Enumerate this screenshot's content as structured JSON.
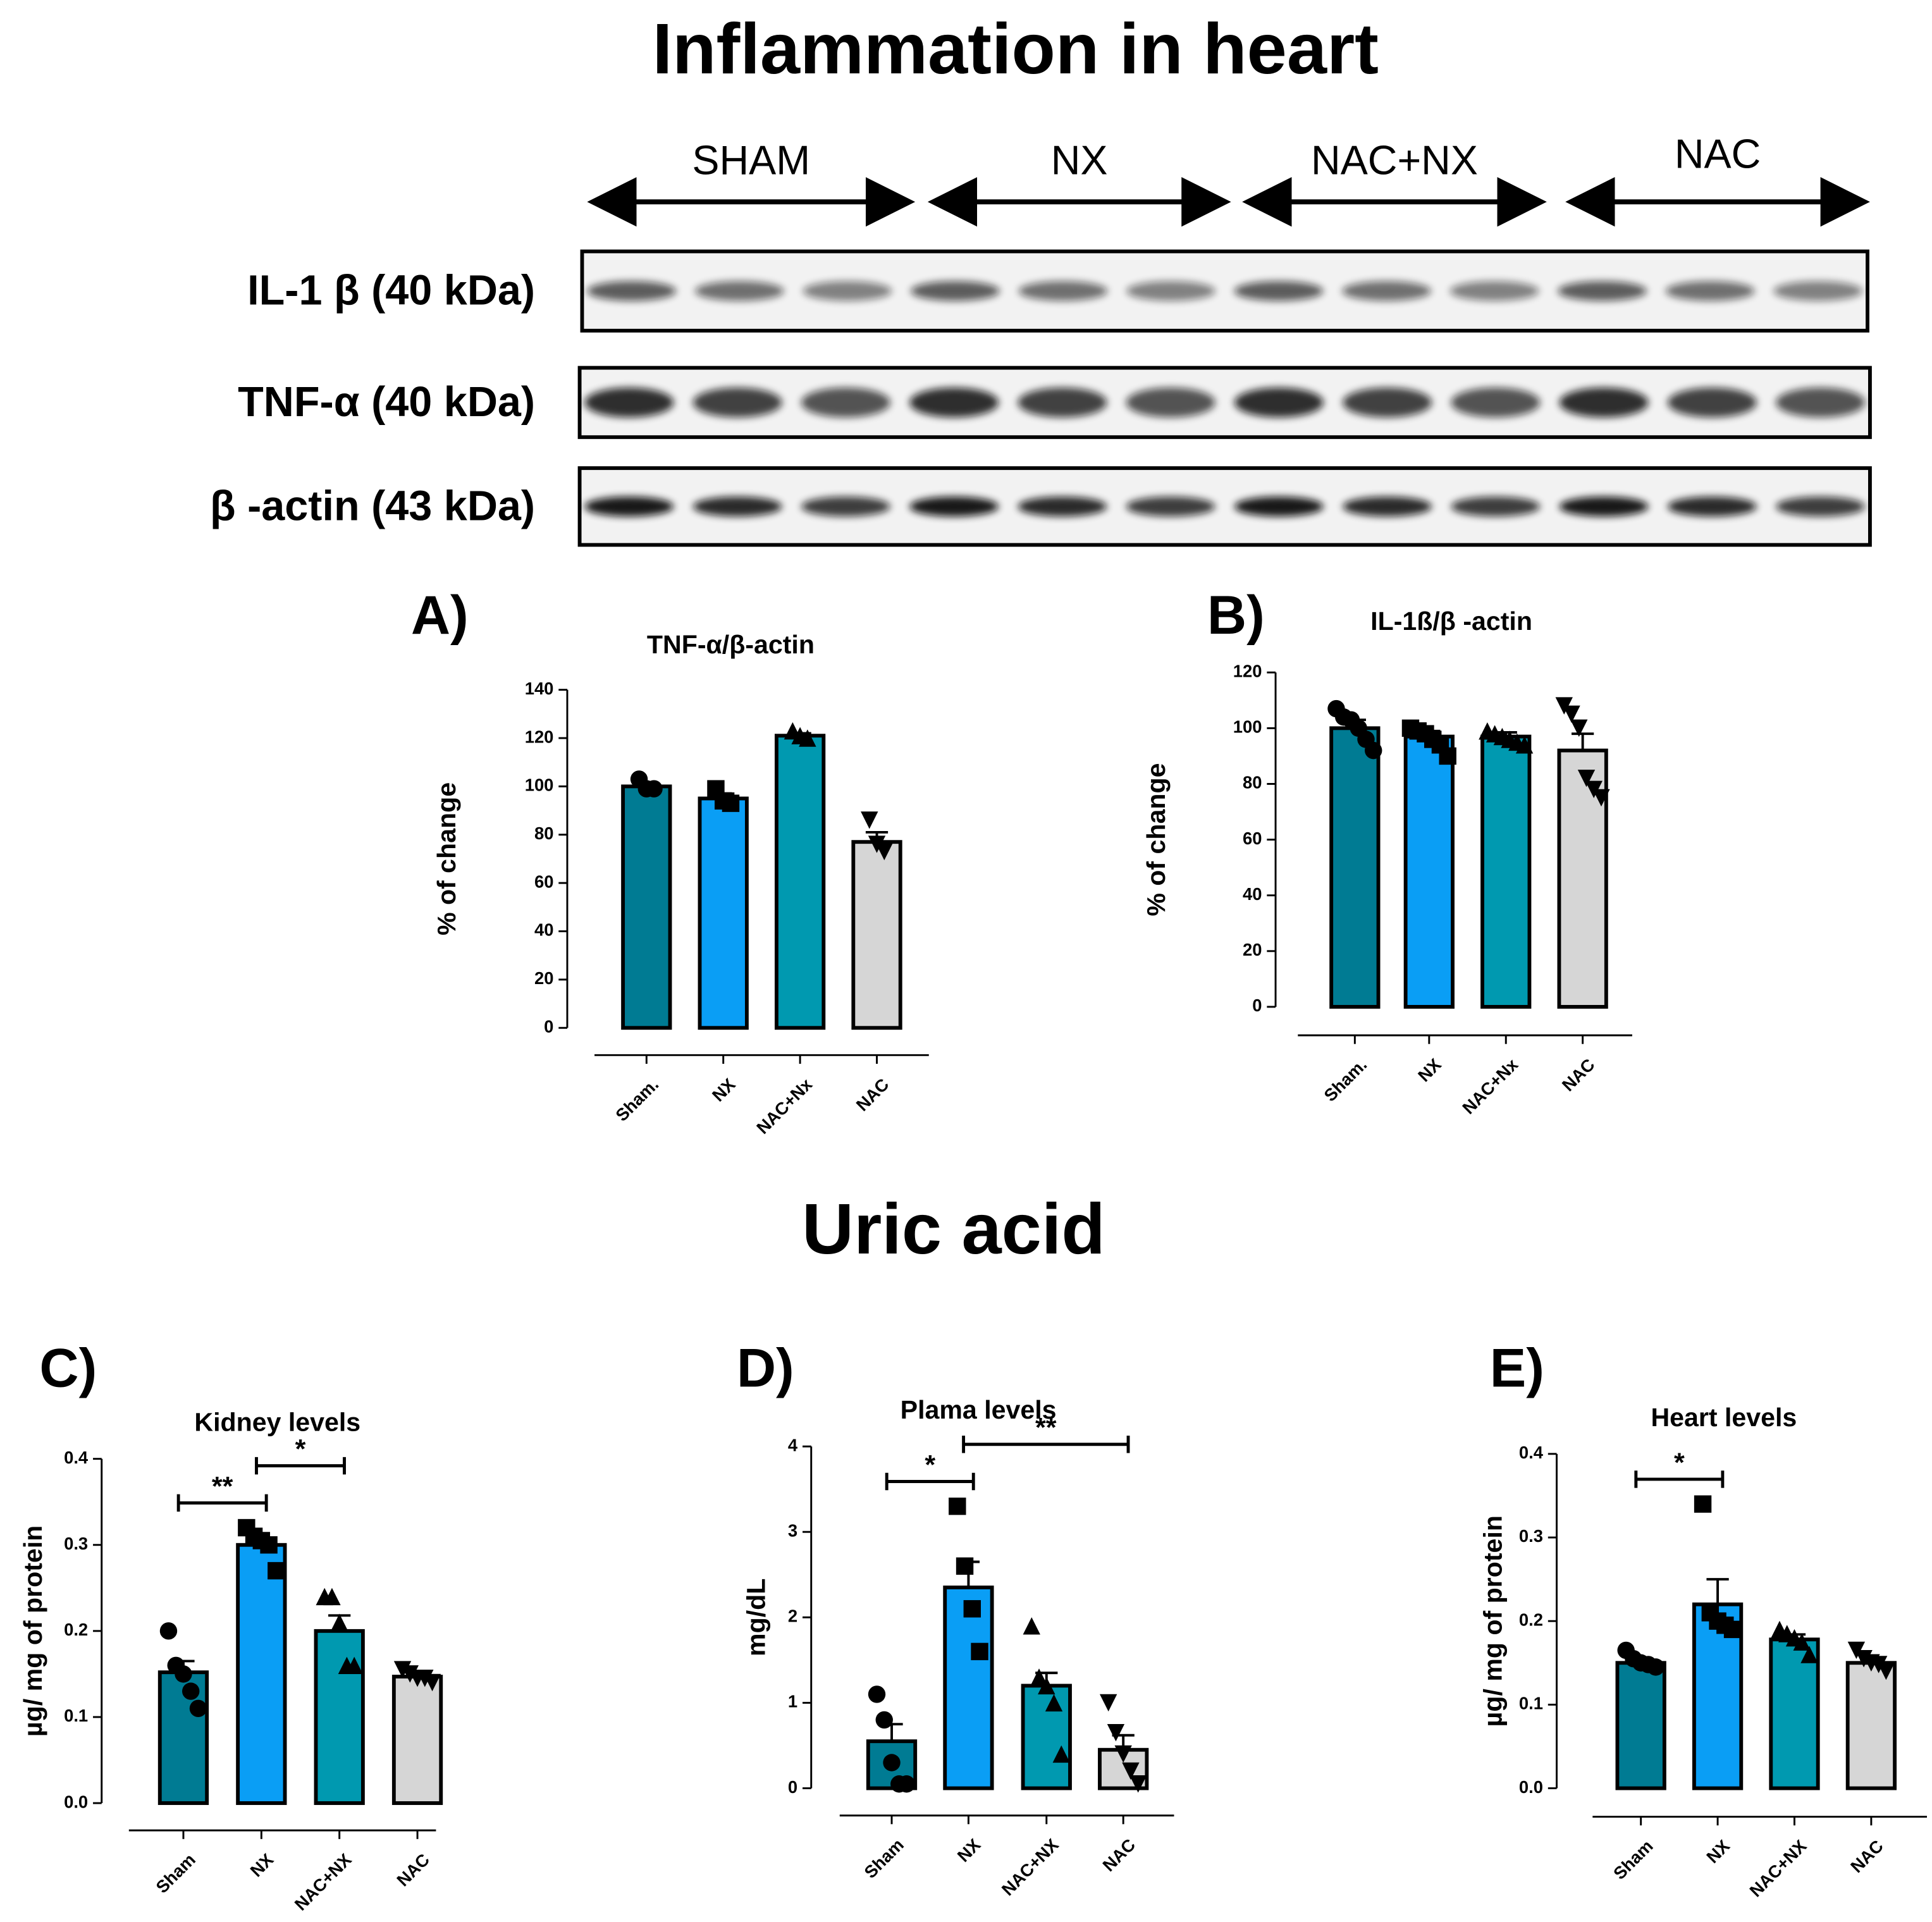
{
  "headings": {
    "inflammation": "Inflammation in heart",
    "uric": "Uric acid"
  },
  "blot": {
    "groups": [
      "SHAM",
      "NX",
      "NAC+NX",
      "NAC"
    ],
    "rows": [
      "IL-1 β (40 kDa)",
      "TNF-α (40 kDa)",
      "β -actin (43 kDa)"
    ]
  },
  "chart_data": [
    {
      "type": "bar",
      "panel": "A)",
      "title": "TNF-α/β-actin",
      "ylabel": "% of change",
      "categories": [
        "Sham.",
        "NX",
        "NAC+Nx",
        "NAC"
      ],
      "colors": [
        "#007b93",
        "#0a9ef5",
        "#0099b0",
        "#d6d6d6"
      ],
      "values": [
        100,
        95,
        121,
        77
      ],
      "errors": [
        1,
        2,
        1,
        4
      ],
      "points": [
        [
          103,
          99,
          99
        ],
        [
          99,
          94,
          93
        ],
        [
          123,
          121,
          120
        ],
        [
          86,
          76,
          73
        ]
      ],
      "markers": [
        "circle",
        "square",
        "triangle",
        "down-triangle"
      ],
      "ylim": [
        0,
        140
      ],
      "yticks": [
        0,
        20,
        40,
        60,
        80,
        100,
        120,
        140
      ],
      "annotations": []
    },
    {
      "type": "bar",
      "panel": "B)",
      "title": "IL-1ß/β -actin",
      "ylabel": "% of change",
      "categories": [
        "Sham.",
        "NX",
        "NAC+Nx",
        "NAC"
      ],
      "colors": [
        "#007b93",
        "#0a9ef5",
        "#0099b0",
        "#d6d6d6"
      ],
      "values": [
        100,
        97,
        97,
        92
      ],
      "errors": [
        3,
        2,
        1.5,
        6
      ],
      "points": [
        [
          107,
          104,
          103,
          100,
          96,
          92
        ],
        [
          100,
          99,
          98,
          96,
          94,
          90
        ],
        [
          99,
          98,
          97,
          96,
          95,
          94
        ],
        [
          108,
          105,
          100,
          82,
          78,
          75
        ]
      ],
      "markers": [
        "circle",
        "square",
        "triangle",
        "down-triangle"
      ],
      "ylim": [
        0,
        120
      ],
      "yticks": [
        0,
        20,
        40,
        60,
        80,
        100,
        120
      ],
      "annotations": []
    },
    {
      "type": "bar",
      "panel": "C)",
      "title": "Kidney levels",
      "ylabel": "µg/ mg of protein",
      "categories": [
        "Sham",
        "NX",
        "NAC+NX",
        "NAC"
      ],
      "colors": [
        "#007b93",
        "#0a9ef5",
        "#0099b0",
        "#d6d6d6"
      ],
      "values": [
        0.152,
        0.3,
        0.2,
        0.147
      ],
      "errors": [
        0.013,
        0.007,
        0.018,
        0.003
      ],
      "points": [
        [
          0.2,
          0.16,
          0.15,
          0.13,
          0.11
        ],
        [
          0.32,
          0.31,
          0.305,
          0.3,
          0.27
        ],
        [
          0.24,
          0.24,
          0.21,
          0.16,
          0.16
        ],
        [
          0.155,
          0.15,
          0.145,
          0.145,
          0.14
        ]
      ],
      "markers": [
        "circle",
        "square",
        "triangle",
        "down-triangle"
      ],
      "ylim": [
        0,
        0.4
      ],
      "yticks": [
        {
          "value": 0,
          "label": "0.0"
        },
        0.1,
        0.2,
        0.3,
        0.4
      ],
      "annotations": [
        {
          "text": "**",
          "between": [
            "Sham",
            "NX"
          ]
        },
        {
          "text": "*",
          "between": [
            "NX",
            "NAC+NX"
          ]
        }
      ]
    },
    {
      "type": "bar",
      "panel": "D)",
      "title": "Plama levels",
      "ylabel": "mg/dL",
      "categories": [
        "Sham",
        "NX",
        "NAC+NX",
        "NAC"
      ],
      "colors": [
        "#007b93",
        "#0a9ef5",
        "#0099b0",
        "#d6d6d6"
      ],
      "values": [
        0.55,
        2.35,
        1.2,
        0.45
      ],
      "errors": [
        0.2,
        0.3,
        0.15,
        0.17
      ],
      "points": [
        [
          1.1,
          0.8,
          0.3,
          0.05,
          0.05
        ],
        [
          3.3,
          2.6,
          2.1,
          1.6
        ],
        [
          1.9,
          1.3,
          1.2,
          1.0,
          0.4
        ],
        [
          1.0,
          0.65,
          0.4,
          0.2,
          0.05
        ]
      ],
      "markers": [
        "circle",
        "square",
        "triangle",
        "down-triangle"
      ],
      "ylim": [
        0,
        4
      ],
      "yticks": [
        0,
        1,
        2,
        3,
        4
      ],
      "annotations": [
        {
          "text": "*",
          "between": [
            "Sham",
            "NX"
          ]
        },
        {
          "text": "**",
          "between": [
            "NX",
            "NAC"
          ]
        }
      ]
    },
    {
      "type": "bar",
      "panel": "E)",
      "title": "Heart levels",
      "ylabel": "µg/ mg of protein",
      "categories": [
        "Sham",
        "NX",
        "NAC+NX",
        "NAC"
      ],
      "colors": [
        "#007b93",
        "#0a9ef5",
        "#0099b0",
        "#d6d6d6"
      ],
      "values": [
        0.15,
        0.22,
        0.178,
        0.15
      ],
      "errors": [
        0.005,
        0.03,
        0.006,
        0.004
      ],
      "points": [
        [
          0.165,
          0.155,
          0.15,
          0.148,
          0.145
        ],
        [
          0.34,
          0.21,
          0.2,
          0.195,
          0.19
        ],
        [
          0.19,
          0.185,
          0.18,
          0.175,
          0.16
        ],
        [
          0.165,
          0.155,
          0.15,
          0.148,
          0.14
        ]
      ],
      "markers": [
        "circle",
        "square",
        "triangle",
        "down-triangle"
      ],
      "ylim": [
        0,
        0.4
      ],
      "yticks": [
        {
          "value": 0,
          "label": "0.0"
        },
        0.1,
        0.2,
        0.3,
        0.4
      ],
      "annotations": [
        {
          "text": "*",
          "between": [
            "Sham",
            "NX"
          ]
        }
      ]
    }
  ]
}
